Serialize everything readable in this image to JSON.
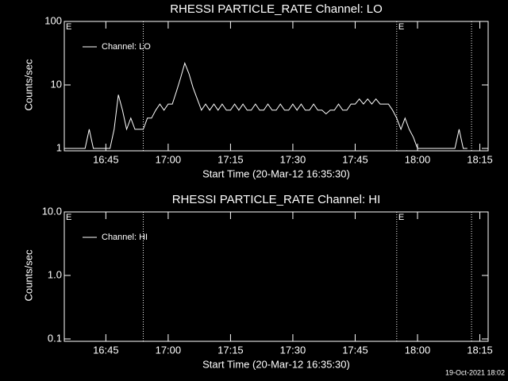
{
  "footer": "19-Oct-2021 18:02",
  "chart_data": [
    {
      "type": "line",
      "title": "RHESSI PARTICLE_RATE Channel: LO",
      "xlabel": "Start Time (20-Mar-12 16:35:30)",
      "ylabel": "Counts/sec",
      "log_y": true,
      "ylim": [
        1,
        100
      ],
      "yticks": [
        1,
        10,
        100
      ],
      "xlim": [
        "16:35",
        "18:17"
      ],
      "xticks": [
        "16:45",
        "17:00",
        "17:15",
        "17:30",
        "17:45",
        "18:00",
        "18:15"
      ],
      "vlines": [
        "16:54",
        "17:55",
        "18:13"
      ],
      "annotations": [
        {
          "text": "E",
          "x": "16:35"
        },
        {
          "text": "E",
          "x": "17:55"
        }
      ],
      "legend": "upper left",
      "x": [
        "16:36",
        "16:37",
        "16:38",
        "16:39",
        "16:40",
        "16:41",
        "16:42",
        "16:43",
        "16:44",
        "16:45",
        "16:46",
        "16:47",
        "16:48",
        "16:49",
        "16:50",
        "16:51",
        "16:52",
        "16:53",
        "16:54",
        "16:55",
        "16:56",
        "16:57",
        "16:58",
        "16:59",
        "17:00",
        "17:01",
        "17:02",
        "17:03",
        "17:04",
        "17:05",
        "17:06",
        "17:07",
        "17:08",
        "17:09",
        "17:10",
        "17:11",
        "17:12",
        "17:13",
        "17:14",
        "17:15",
        "17:16",
        "17:17",
        "17:18",
        "17:19",
        "17:20",
        "17:21",
        "17:22",
        "17:23",
        "17:24",
        "17:25",
        "17:26",
        "17:27",
        "17:28",
        "17:29",
        "17:30",
        "17:31",
        "17:32",
        "17:33",
        "17:34",
        "17:35",
        "17:36",
        "17:37",
        "17:38",
        "17:39",
        "17:40",
        "17:41",
        "17:42",
        "17:43",
        "17:44",
        "17:45",
        "17:46",
        "17:47",
        "17:48",
        "17:49",
        "17:50",
        "17:51",
        "17:52",
        "17:53",
        "17:54",
        "17:55",
        "17:56",
        "17:57",
        "17:58",
        "17:59",
        "18:00",
        "18:01",
        "18:02",
        "18:03",
        "18:04",
        "18:05",
        "18:06",
        "18:07",
        "18:08",
        "18:09",
        "18:10",
        "18:11",
        "18:12"
      ],
      "series": [
        {
          "name": "Channel: LO",
          "color": "#ffffff",
          "values": [
            1,
            1,
            1,
            1,
            1,
            2,
            1,
            1,
            1,
            1,
            1,
            2,
            7,
            4,
            2,
            3,
            2,
            2,
            2,
            3,
            3,
            4,
            5,
            4,
            5,
            5,
            8,
            13,
            22,
            15,
            9,
            6,
            4,
            5,
            4,
            5,
            4,
            5,
            4,
            4,
            5,
            4,
            5,
            4,
            4,
            5,
            4,
            4,
            5,
            4,
            4,
            5,
            4,
            4,
            5,
            4,
            5,
            4,
            4,
            5,
            4,
            4,
            3.5,
            4,
            4,
            5,
            4,
            4,
            5,
            5,
            6,
            5,
            6,
            5,
            6,
            5,
            5,
            5,
            4,
            3,
            2,
            3,
            2,
            1.5,
            1,
            1,
            1,
            1,
            1,
            1,
            1,
            1,
            1,
            1,
            2,
            1,
            1
          ]
        }
      ]
    },
    {
      "type": "line",
      "title": "RHESSI PARTICLE_RATE Channel: HI",
      "xlabel": "Start Time (20-Mar-12 16:35:30)",
      "ylabel": "Counts/sec",
      "log_y": true,
      "ylim": [
        0.1,
        10
      ],
      "yticks": [
        0.1,
        {
          "value": 1,
          "label": "1.0"
        },
        {
          "value": 10,
          "label": "10.0"
        }
      ],
      "xlim": [
        "16:35",
        "18:17"
      ],
      "xticks": [
        "16:45",
        "17:00",
        "17:15",
        "17:30",
        "17:45",
        "18:00",
        "18:15"
      ],
      "vlines": [
        "16:54",
        "17:55",
        "18:13"
      ],
      "annotations": [
        {
          "text": "E",
          "x": "16:35"
        },
        {
          "text": "E",
          "x": "17:55"
        }
      ],
      "legend": "upper left",
      "x": [],
      "series": [
        {
          "name": "Channel: HI",
          "color": "#ffffff",
          "values": []
        }
      ]
    }
  ]
}
